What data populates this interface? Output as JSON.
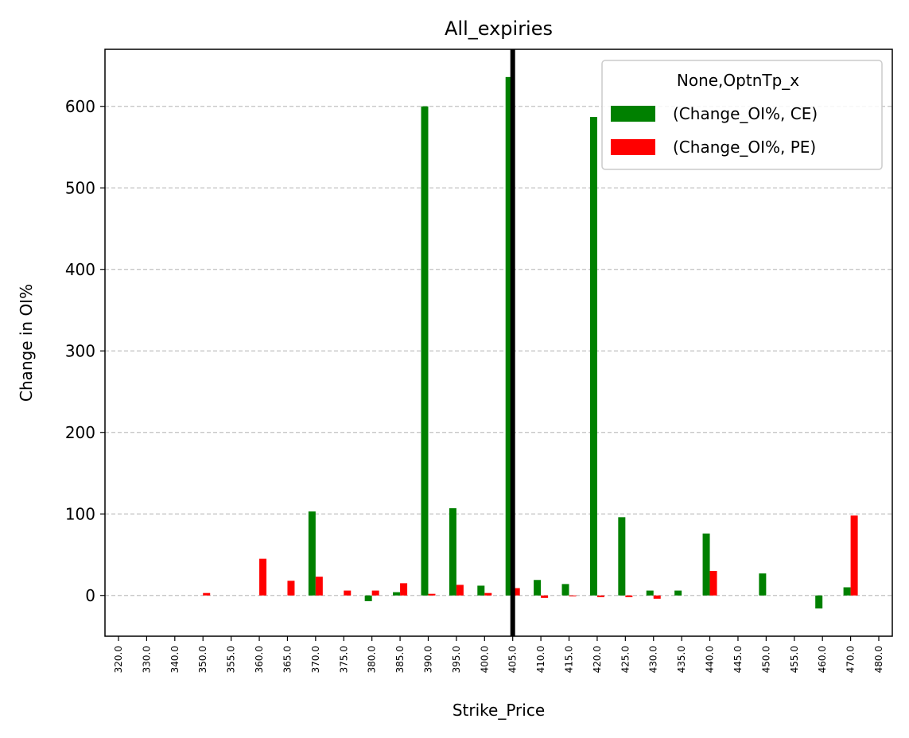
{
  "chart_data": {
    "type": "bar",
    "title": "All_expiries",
    "xlabel": "Strike_Price",
    "ylabel": "Change in OI%",
    "categories": [
      "320.0",
      "330.0",
      "340.0",
      "350.0",
      "355.0",
      "360.0",
      "365.0",
      "370.0",
      "375.0",
      "380.0",
      "385.0",
      "390.0",
      "395.0",
      "400.0",
      "405.0",
      "410.0",
      "415.0",
      "420.0",
      "425.0",
      "430.0",
      "435.0",
      "440.0",
      "445.0",
      "450.0",
      "455.0",
      "460.0",
      "470.0",
      "480.0"
    ],
    "series": [
      {
        "name": "(Change_OI%, CE)",
        "color": "#008000",
        "values": [
          0,
          0,
          0,
          0,
          0,
          0,
          0,
          103,
          0,
          -7,
          4,
          600,
          107,
          12,
          636,
          19,
          14,
          587,
          96,
          6,
          6,
          76,
          0,
          27,
          0,
          -16,
          10,
          0
        ]
      },
      {
        "name": "(Change_OI%, PE)",
        "color": "#ff0000",
        "values": [
          0,
          0,
          0,
          3,
          0,
          45,
          18,
          23,
          6,
          6,
          15,
          2,
          13,
          3,
          9,
          -3,
          -1,
          -2,
          -2,
          -4,
          0,
          30,
          0,
          0,
          0,
          0,
          98,
          0
        ]
      }
    ],
    "ylim": [
      -50,
      670
    ],
    "yticks": [
      0,
      100,
      200,
      300,
      400,
      500,
      600
    ],
    "grid": "y-dashed",
    "vline_category": "405.0",
    "legend": {
      "title": "None,OptnTp_x",
      "placement": "top-right"
    }
  }
}
